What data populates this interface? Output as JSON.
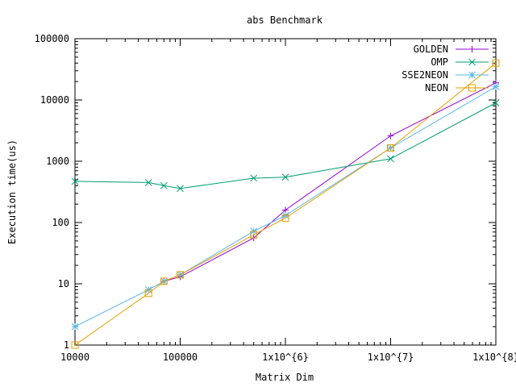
{
  "chart_data": {
    "type": "line",
    "title": "abs Benchmark",
    "xlabel": "Matrix Dim",
    "ylabel": "Execution time(us)",
    "x_scale": "log",
    "y_scale": "log",
    "xlim": [
      10000,
      100000000
    ],
    "ylim": [
      1,
      100000
    ],
    "x_ticks": [
      {
        "value": 10000,
        "label": "10000"
      },
      {
        "value": 100000,
        "label": "100000"
      },
      {
        "value": 1000000,
        "label": "1x10^{6}"
      },
      {
        "value": 10000000,
        "label": "1x10^{7}"
      },
      {
        "value": 100000000,
        "label": "1x10^{8}"
      }
    ],
    "y_ticks": [
      {
        "value": 1,
        "label": "1"
      },
      {
        "value": 10,
        "label": "10"
      },
      {
        "value": 100,
        "label": "100"
      },
      {
        "value": 1000,
        "label": "1000"
      },
      {
        "value": 10000,
        "label": "10000"
      },
      {
        "value": 100000,
        "label": "100000"
      }
    ],
    "grid": false,
    "legend_position": "top-right",
    "series": [
      {
        "name": "GOLDEN",
        "color": "#9400d3",
        "marker": "plus",
        "points": [
          [
            70000,
            11
          ],
          [
            100000,
            13
          ],
          [
            500000,
            56
          ],
          [
            1000000,
            160
          ],
          [
            10000000,
            2600
          ],
          [
            100000000,
            19000
          ]
        ]
      },
      {
        "name": "OMP",
        "color": "#009e73",
        "marker": "cross",
        "points": [
          [
            10000,
            470
          ],
          [
            50000,
            450
          ],
          [
            70000,
            400
          ],
          [
            100000,
            360
          ],
          [
            500000,
            530
          ],
          [
            1000000,
            550
          ],
          [
            10000000,
            1100
          ],
          [
            100000000,
            9000
          ]
        ]
      },
      {
        "name": "SSE2NEON",
        "color": "#56b4e9",
        "marker": "star",
        "points": [
          [
            10000,
            2
          ],
          [
            50000,
            8
          ],
          [
            70000,
            11
          ],
          [
            100000,
            14
          ],
          [
            500000,
            72
          ],
          [
            1000000,
            130
          ],
          [
            10000000,
            1650
          ],
          [
            100000000,
            16500
          ]
        ]
      },
      {
        "name": "NEON",
        "color": "#e69f00",
        "marker": "box",
        "points": [
          [
            10000,
            1
          ],
          [
            50000,
            7
          ],
          [
            70000,
            11
          ],
          [
            100000,
            14
          ],
          [
            500000,
            63
          ],
          [
            1000000,
            118
          ],
          [
            10000000,
            1650
          ],
          [
            100000000,
            40000
          ]
        ]
      }
    ]
  }
}
